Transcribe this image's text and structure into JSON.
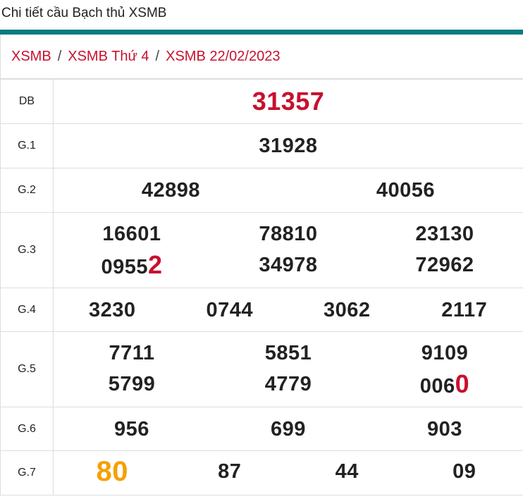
{
  "title": "Chi tiết cầu Bạch thủ XSMB",
  "breadcrumb": [
    "XSMB",
    "XSMB Thứ 4",
    "XSMB 22/02/2023"
  ],
  "colors": {
    "accent_bar": "#0a7b80",
    "red": "#c8102e",
    "orange": "#f5a000"
  },
  "prizes": [
    {
      "label": "DB",
      "cols": 1,
      "height": 1,
      "numbers": [
        {
          "text": "31357",
          "hl": ""
        }
      ]
    },
    {
      "label": "G.1",
      "cols": 1,
      "numbers": [
        {
          "text": "31928",
          "hl": ""
        }
      ]
    },
    {
      "label": "G.2",
      "cols": 2,
      "numbers": [
        {
          "text": "42898",
          "hl": ""
        },
        {
          "text": "40056",
          "hl": ""
        }
      ]
    },
    {
      "label": "G.3",
      "cols": 3,
      "numbers": [
        {
          "text": "16601",
          "hl": ""
        },
        {
          "text": "78810",
          "hl": ""
        },
        {
          "text": "23130",
          "hl": ""
        },
        {
          "text": "0955",
          "hl": "2",
          "hl_color": "red"
        },
        {
          "text": "34978",
          "hl": ""
        },
        {
          "text": "72962",
          "hl": ""
        }
      ]
    },
    {
      "label": "G.4",
      "cols": 4,
      "numbers": [
        {
          "text": "3230",
          "hl": ""
        },
        {
          "text": "0744",
          "hl": ""
        },
        {
          "text": "3062",
          "hl": ""
        },
        {
          "text": "2117",
          "hl": ""
        }
      ]
    },
    {
      "label": "G.5",
      "cols": 3,
      "numbers": [
        {
          "text": "7711",
          "hl": ""
        },
        {
          "text": "5851",
          "hl": ""
        },
        {
          "text": "9109",
          "hl": ""
        },
        {
          "text": "5799",
          "hl": ""
        },
        {
          "text": "4779",
          "hl": ""
        },
        {
          "text": "006",
          "hl": "0",
          "hl_color": "red"
        }
      ]
    },
    {
      "label": "G.6",
      "cols": 3,
      "numbers": [
        {
          "text": "956",
          "hl": ""
        },
        {
          "text": "699",
          "hl": ""
        },
        {
          "text": "903",
          "hl": ""
        }
      ]
    },
    {
      "label": "G.7",
      "cols": 4,
      "numbers": [
        {
          "text": "",
          "hl": "80",
          "hl_color": "orange"
        },
        {
          "text": "87",
          "hl": ""
        },
        {
          "text": "44",
          "hl": ""
        },
        {
          "text": "09",
          "hl": ""
        }
      ]
    }
  ]
}
